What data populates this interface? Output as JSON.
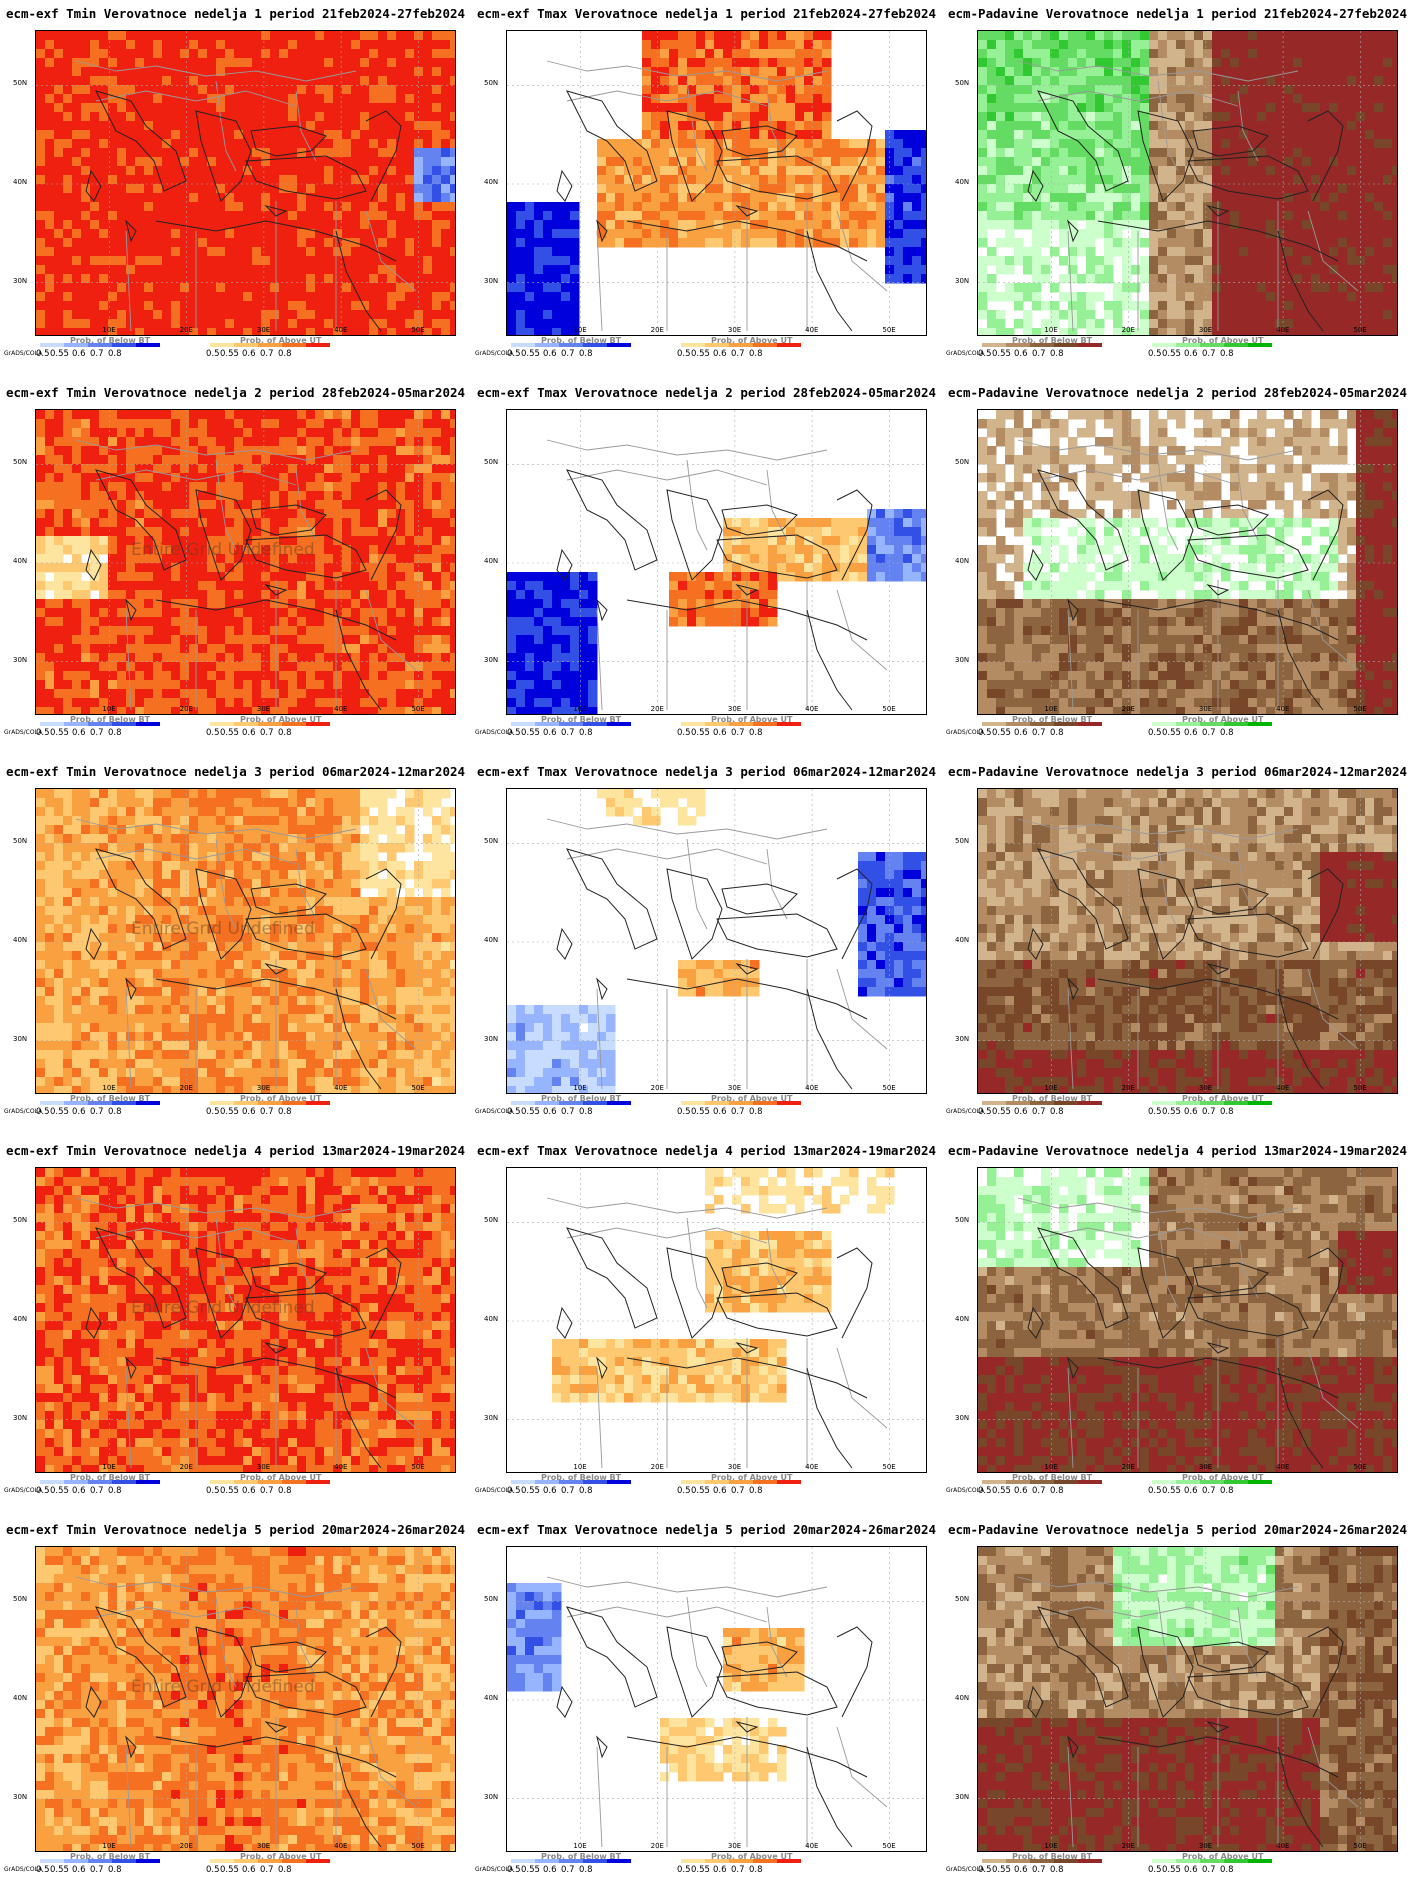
{
  "layout_info": {
    "rows": 5,
    "cols": 3
  },
  "map_axes": {
    "y_ticks": [
      "50N",
      "40N",
      "30N"
    ],
    "x_ticks": [
      "10E",
      "20E",
      "30E",
      "40E",
      "50E"
    ]
  },
  "legends": {
    "below": {
      "label": "Prob. of Below BT",
      "colors": [
        "#c8dcff",
        "#96b4ff",
        "#6482f0",
        "#3250e6",
        "#0000dc"
      ]
    },
    "above": {
      "label": "Prob. of Above UT",
      "colors": [
        "#fde5a0",
        "#fdc870",
        "#f9a040",
        "#f57020",
        "#f02010"
      ]
    },
    "dry": {
      "label": "Prob. of Below BT",
      "colors": [
        "#d2b48c",
        "#b48c64",
        "#8c6440",
        "#784628",
        "#962828"
      ]
    },
    "wet": {
      "label": "Prob. of Above UT",
      "colors": [
        "#ccffcc",
        "#96f096",
        "#64dc64",
        "#32c832",
        "#00b400"
      ]
    },
    "ticks": [
      "0.5",
      "0.55",
      "0.6",
      "0.7",
      "0.8"
    ],
    "grads_label": "GrADS/COLA"
  },
  "undefined_text": "Entire Grid Undefined",
  "panels": [
    {
      "title": "ecm-exf Tmin Verovatnoce nedelja 1 period 21feb2024-27feb2024",
      "kind": "tmin",
      "week": 1
    },
    {
      "title": "ecm-exf Tmax Verovatnoce nedelja 1 period 21feb2024-27feb2024",
      "kind": "tmax",
      "week": 1
    },
    {
      "title": "ecm-Padavine Verovatnoce nedelja 1 period 21feb2024-27feb2024",
      "kind": "prec",
      "week": 1
    },
    {
      "title": "ecm-exf Tmin Verovatnoce nedelja 2 period 28feb2024-05mar2024",
      "kind": "tmin",
      "week": 2
    },
    {
      "title": "ecm-exf Tmax Verovatnoce nedelja 2 period 28feb2024-05mar2024",
      "kind": "tmax",
      "week": 2
    },
    {
      "title": "ecm-Padavine Verovatnoce nedelja 2 period 28feb2024-05mar2024",
      "kind": "prec",
      "week": 2
    },
    {
      "title": "ecm-exf Tmin Verovatnoce nedelja 3 period 06mar2024-12mar2024",
      "kind": "tmin",
      "week": 3
    },
    {
      "title": "ecm-exf Tmax Verovatnoce nedelja 3 period 06mar2024-12mar2024",
      "kind": "tmax",
      "week": 3
    },
    {
      "title": "ecm-Padavine Verovatnoce nedelja 3 period 06mar2024-12mar2024",
      "kind": "prec",
      "week": 3
    },
    {
      "title": "ecm-exf Tmin Verovatnoce nedelja 4 period 13mar2024-19mar2024",
      "kind": "tmin",
      "week": 4
    },
    {
      "title": "ecm-exf Tmax Verovatnoce nedelja 4 period 13mar2024-19mar2024",
      "kind": "tmax",
      "week": 4
    },
    {
      "title": "ecm-Padavine Verovatnoce nedelja 4 period 13mar2024-19mar2024",
      "kind": "prec",
      "week": 4
    },
    {
      "title": "ecm-exf Tmin Verovatnoce nedelja 5 period 20mar2024-26mar2024",
      "kind": "tmin",
      "week": 5
    },
    {
      "title": "ecm-exf Tmax Verovatnoce nedelja 5 period 20mar2024-26mar2024",
      "kind": "tmax",
      "week": 5
    },
    {
      "title": "ecm-Padavine Verovatnoce nedelja 5 period 20mar2024-26mar2024",
      "kind": "prec",
      "week": 5
    }
  ]
}
